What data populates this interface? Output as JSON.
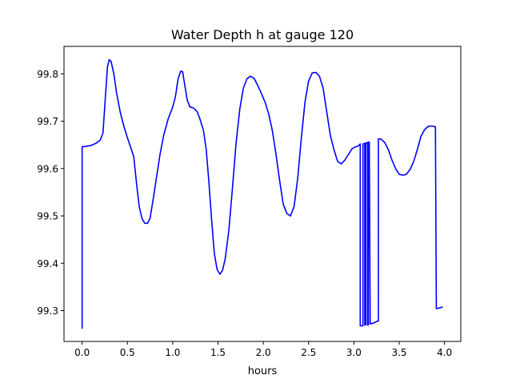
{
  "chart_data": {
    "type": "line",
    "title": "Water Depth h at gauge 120",
    "xlabel": "hours",
    "ylabel": "",
    "xlim": [
      -0.2,
      4.18
    ],
    "ylim": [
      99.235,
      99.858
    ],
    "xticks": [
      0.0,
      0.5,
      1.0,
      1.5,
      2.0,
      2.5,
      3.0,
      3.5,
      4.0
    ],
    "xtick_labels": [
      "0.0",
      "0.5",
      "1.0",
      "1.5",
      "2.0",
      "2.5",
      "3.0",
      "3.5",
      "4.0"
    ],
    "yticks": [
      99.3,
      99.4,
      99.5,
      99.6,
      99.7,
      99.8
    ],
    "ytick_labels": [
      "99.3",
      "99.4",
      "99.5",
      "99.6",
      "99.7",
      "99.8"
    ],
    "grid": false,
    "legend": "none",
    "series": [
      {
        "color": "#0000ff",
        "points": [
          [
            0.0,
            99.262
          ],
          [
            0.0,
            99.646
          ],
          [
            0.05,
            99.647
          ],
          [
            0.1,
            99.649
          ],
          [
            0.15,
            99.653
          ],
          [
            0.2,
            99.66
          ],
          [
            0.23,
            99.675
          ],
          [
            0.26,
            99.76
          ],
          [
            0.28,
            99.815
          ],
          [
            0.3,
            99.83
          ],
          [
            0.32,
            99.826
          ],
          [
            0.35,
            99.8
          ],
          [
            0.38,
            99.76
          ],
          [
            0.42,
            99.72
          ],
          [
            0.46,
            99.69
          ],
          [
            0.5,
            99.665
          ],
          [
            0.53,
            99.648
          ],
          [
            0.57,
            99.625
          ],
          [
            0.6,
            99.57
          ],
          [
            0.63,
            99.52
          ],
          [
            0.66,
            99.495
          ],
          [
            0.69,
            99.485
          ],
          [
            0.72,
            99.484
          ],
          [
            0.75,
            99.495
          ],
          [
            0.78,
            99.53
          ],
          [
            0.82,
            99.58
          ],
          [
            0.86,
            99.63
          ],
          [
            0.9,
            99.67
          ],
          [
            0.95,
            99.705
          ],
          [
            1.0,
            99.73
          ],
          [
            1.03,
            99.752
          ],
          [
            1.06,
            99.79
          ],
          [
            1.09,
            99.806
          ],
          [
            1.11,
            99.804
          ],
          [
            1.13,
            99.78
          ],
          [
            1.16,
            99.745
          ],
          [
            1.19,
            99.73
          ],
          [
            1.23,
            99.728
          ],
          [
            1.27,
            99.72
          ],
          [
            1.3,
            99.705
          ],
          [
            1.34,
            99.68
          ],
          [
            1.37,
            99.64
          ],
          [
            1.4,
            99.57
          ],
          [
            1.43,
            99.49
          ],
          [
            1.46,
            99.42
          ],
          [
            1.49,
            99.387
          ],
          [
            1.52,
            99.377
          ],
          [
            1.55,
            99.385
          ],
          [
            1.58,
            99.41
          ],
          [
            1.62,
            99.47
          ],
          [
            1.66,
            99.56
          ],
          [
            1.7,
            99.655
          ],
          [
            1.74,
            99.725
          ],
          [
            1.78,
            99.77
          ],
          [
            1.82,
            99.79
          ],
          [
            1.86,
            99.795
          ],
          [
            1.9,
            99.79
          ],
          [
            1.94,
            99.775
          ],
          [
            1.98,
            99.758
          ],
          [
            2.02,
            99.74
          ],
          [
            2.06,
            99.715
          ],
          [
            2.1,
            99.68
          ],
          [
            2.14,
            99.63
          ],
          [
            2.18,
            99.575
          ],
          [
            2.22,
            99.525
          ],
          [
            2.26,
            99.505
          ],
          [
            2.3,
            99.5
          ],
          [
            2.34,
            99.52
          ],
          [
            2.38,
            99.58
          ],
          [
            2.42,
            99.665
          ],
          [
            2.46,
            99.74
          ],
          [
            2.5,
            99.785
          ],
          [
            2.54,
            99.802
          ],
          [
            2.58,
            99.803
          ],
          [
            2.62,
            99.795
          ],
          [
            2.66,
            99.77
          ],
          [
            2.7,
            99.72
          ],
          [
            2.74,
            99.67
          ],
          [
            2.78,
            99.64
          ],
          [
            2.82,
            99.615
          ],
          [
            2.86,
            99.61
          ],
          [
            2.9,
            99.618
          ],
          [
            2.94,
            99.63
          ],
          [
            2.98,
            99.642
          ],
          [
            3.02,
            99.646
          ],
          [
            3.05,
            99.648
          ],
          [
            3.07,
            99.652
          ],
          [
            3.07,
            99.268
          ],
          [
            3.1,
            99.268
          ],
          [
            3.1,
            99.652
          ],
          [
            3.12,
            99.653
          ],
          [
            3.12,
            99.27
          ],
          [
            3.13,
            99.27
          ],
          [
            3.13,
            99.654
          ],
          [
            3.15,
            99.655
          ],
          [
            3.15,
            99.27
          ],
          [
            3.16,
            99.27
          ],
          [
            3.16,
            99.656
          ],
          [
            3.17,
            99.656
          ],
          [
            3.18,
            99.272
          ],
          [
            3.22,
            99.274
          ],
          [
            3.26,
            99.278
          ],
          [
            3.27,
            99.278
          ],
          [
            3.27,
            99.663
          ],
          [
            3.3,
            99.662
          ],
          [
            3.34,
            99.655
          ],
          [
            3.38,
            99.64
          ],
          [
            3.42,
            99.618
          ],
          [
            3.46,
            99.6
          ],
          [
            3.5,
            99.588
          ],
          [
            3.54,
            99.586
          ],
          [
            3.58,
            99.588
          ],
          [
            3.62,
            99.598
          ],
          [
            3.66,
            99.615
          ],
          [
            3.7,
            99.64
          ],
          [
            3.74,
            99.668
          ],
          [
            3.78,
            99.682
          ],
          [
            3.82,
            99.689
          ],
          [
            3.86,
            99.69
          ],
          [
            3.9,
            99.688
          ],
          [
            3.9,
            99.686
          ],
          [
            3.91,
            99.304
          ],
          [
            3.95,
            99.306
          ],
          [
            3.98,
            99.308
          ]
        ]
      }
    ]
  }
}
